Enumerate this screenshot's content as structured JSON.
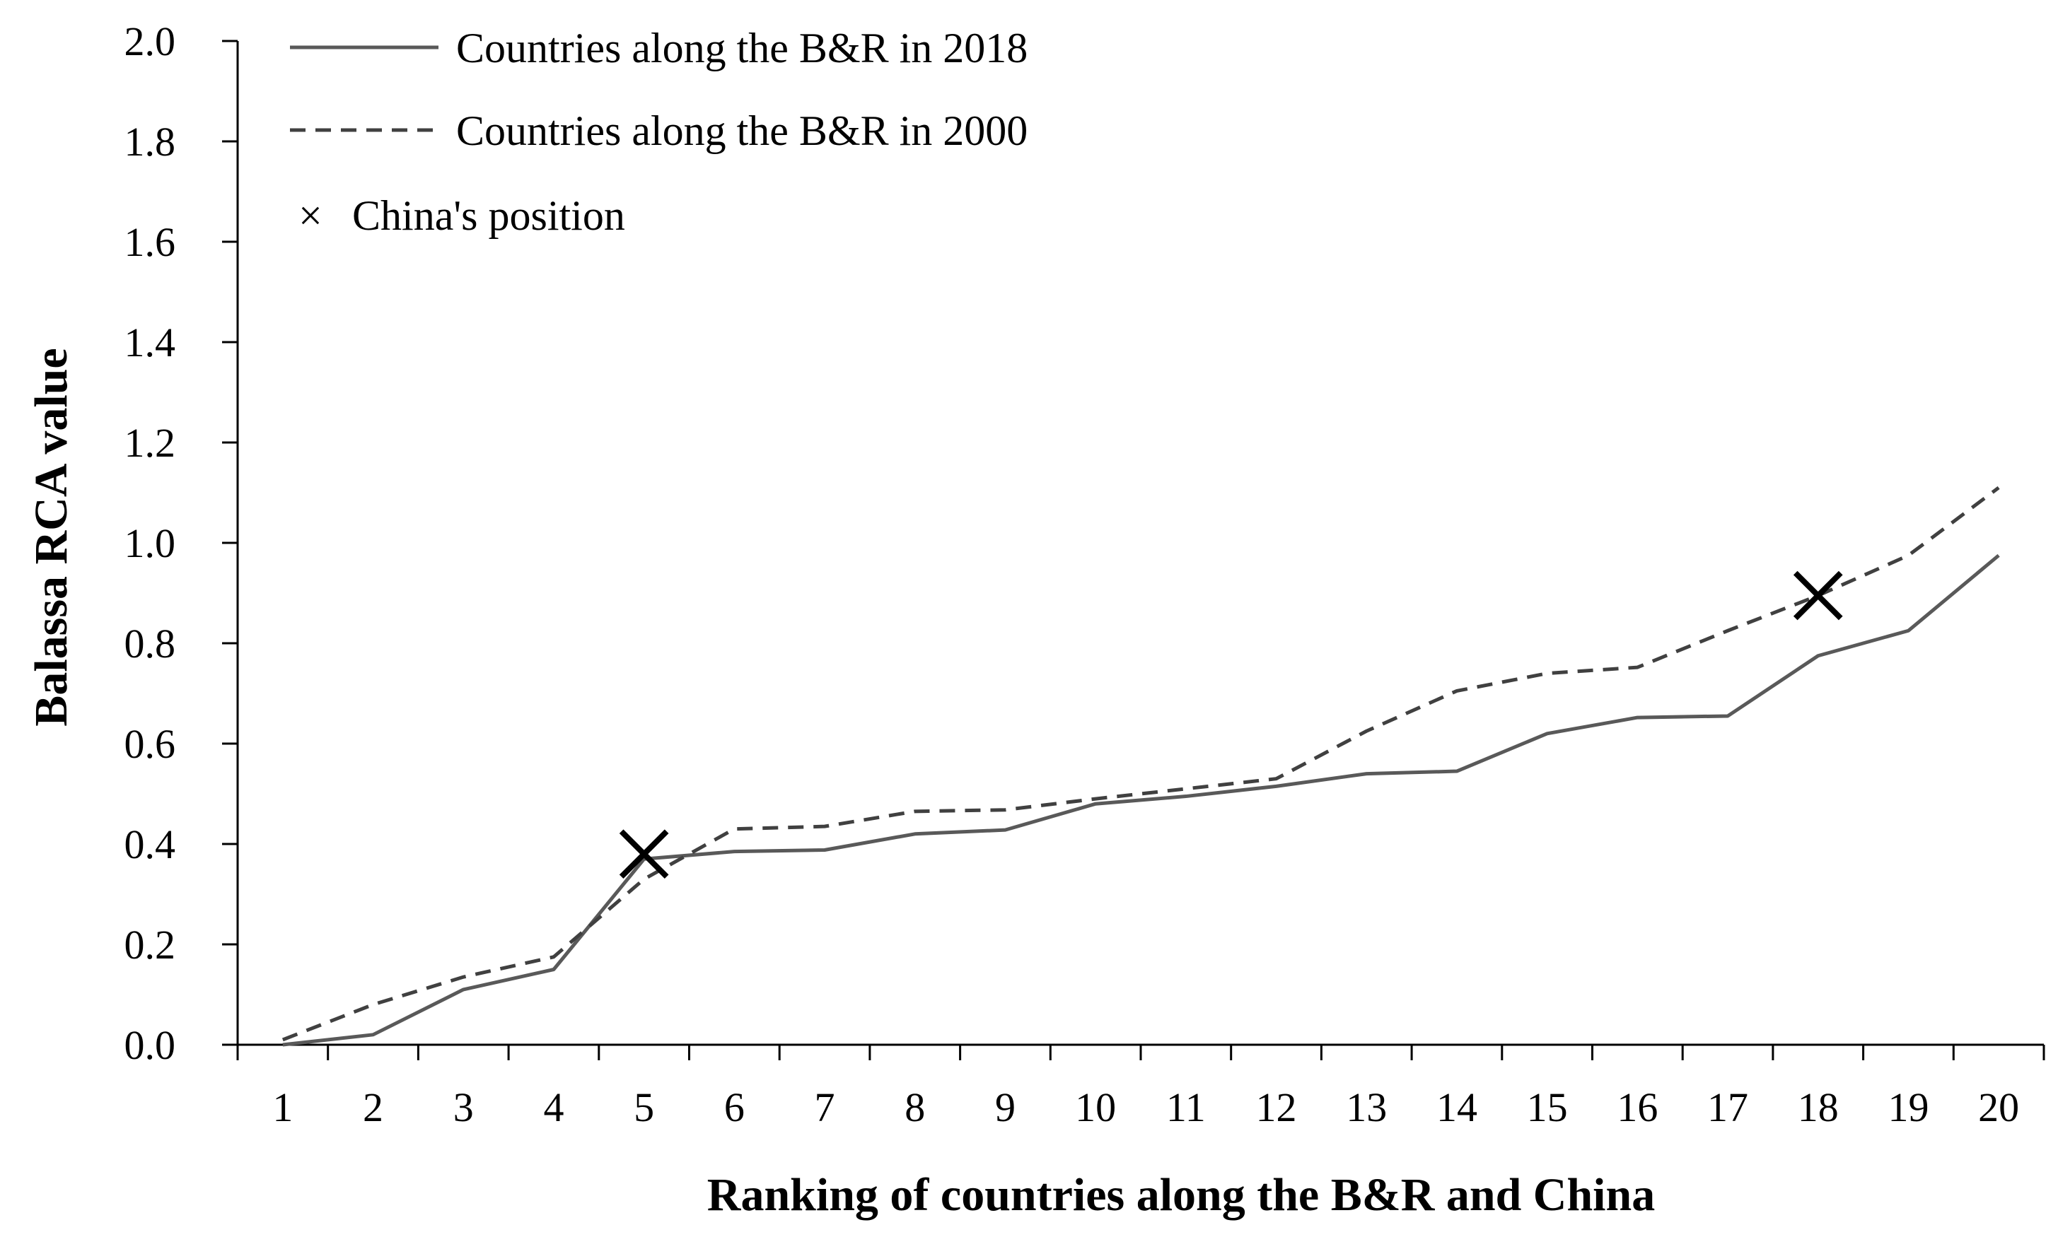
{
  "chart_data": {
    "type": "line",
    "title": "",
    "xlabel": "Ranking of countries along the B&R and China",
    "ylabel": "Balassa RCA value",
    "x": [
      1,
      2,
      3,
      4,
      5,
      6,
      7,
      8,
      9,
      10,
      11,
      12,
      13,
      14,
      15,
      16,
      17,
      18,
      19,
      20
    ],
    "x_tick_labels": [
      "1",
      "2",
      "3",
      "4",
      "5",
      "6",
      "7",
      "8",
      "9",
      "10",
      "11",
      "12",
      "13",
      "14",
      "15",
      "16",
      "17",
      "18",
      "19",
      "20"
    ],
    "ylim": [
      0.0,
      2.0
    ],
    "y_ticks": [
      0.0,
      0.2,
      0.4,
      0.6,
      0.8,
      1.0,
      1.2,
      1.4,
      1.6,
      1.8,
      2.0
    ],
    "y_tick_labels": [
      "0.0",
      "0.2",
      "0.4",
      "0.6",
      "0.8",
      "1.0",
      "1.2",
      "1.4",
      "1.6",
      "1.8",
      "2.0"
    ],
    "grid": false,
    "legend_position": "top-left",
    "series": [
      {
        "name": "Countries along the B&R in 2018",
        "style": "solid",
        "color": "#595959",
        "values": [
          0.0,
          0.02,
          0.11,
          0.15,
          0.37,
          0.385,
          0.388,
          0.42,
          0.428,
          0.48,
          0.495,
          0.515,
          0.54,
          0.545,
          0.62,
          0.652,
          0.655,
          0.775,
          0.825,
          0.975
        ]
      },
      {
        "name": "Countries along the B&R in 2000",
        "style": "dashed",
        "color": "#404040",
        "values": [
          0.01,
          0.08,
          0.135,
          0.175,
          0.33,
          0.43,
          0.435,
          0.465,
          0.468,
          0.49,
          0.51,
          0.53,
          0.625,
          0.705,
          0.74,
          0.752,
          0.825,
          0.895,
          0.975,
          1.11
        ]
      }
    ],
    "markers": {
      "name": "China's position",
      "symbol": "×",
      "color": "#000000",
      "points": [
        {
          "x": 5,
          "y": 0.38
        },
        {
          "x": 18,
          "y": 0.895
        }
      ]
    }
  }
}
